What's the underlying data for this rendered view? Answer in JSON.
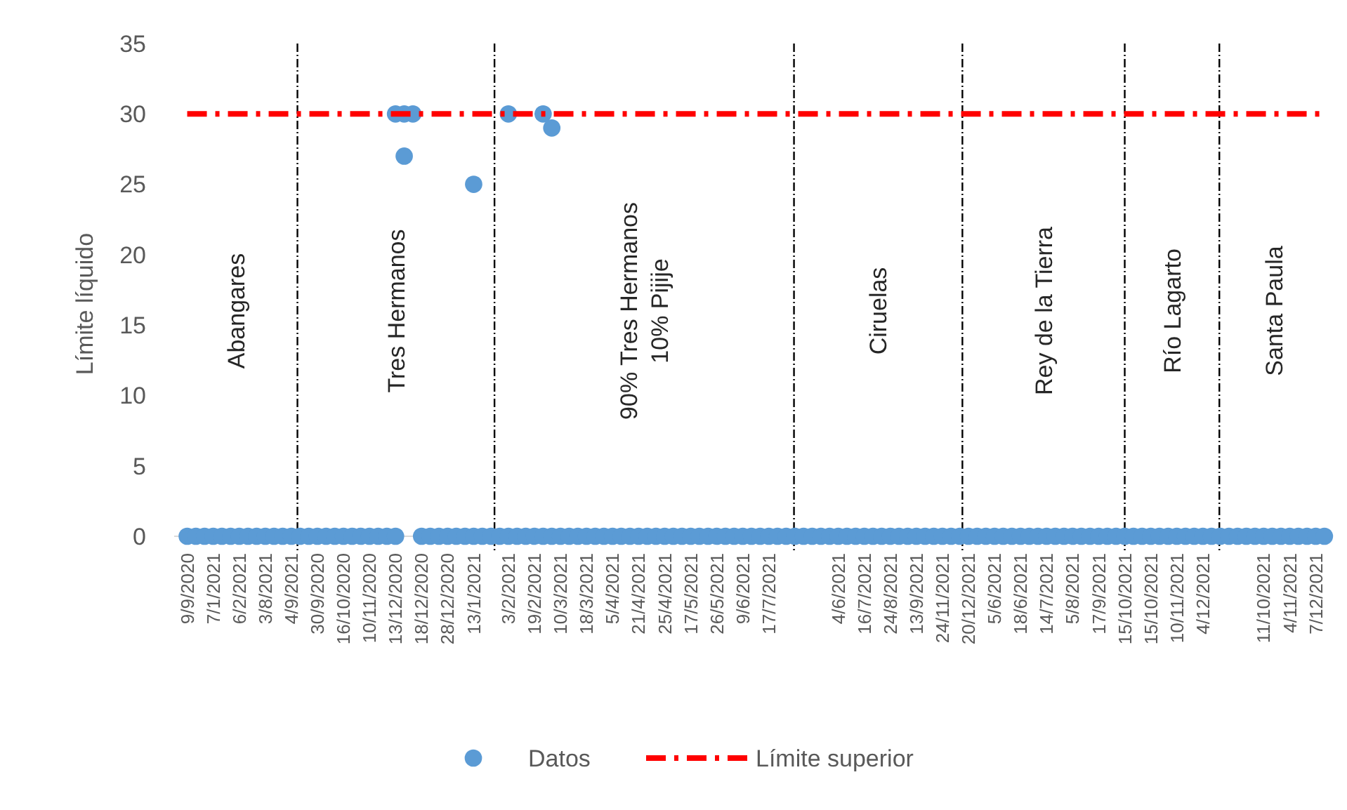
{
  "chart_data": {
    "type": "scatter",
    "ylabel": "Límite líquido",
    "categories": [
      null,
      "9/9/2020",
      null,
      null,
      "7/1/2021",
      null,
      null,
      "6/2/2021",
      null,
      null,
      "3/8/2021",
      null,
      null,
      "4/9/2021",
      null,
      null,
      "30/9/2020",
      null,
      null,
      "16/10/2020",
      null,
      null,
      "10/11/2020",
      null,
      null,
      "13/12/2020",
      null,
      null,
      "18/12/2020",
      null,
      null,
      "28/12/2020",
      null,
      null,
      "13/1/2021",
      null,
      null,
      null,
      "3/2/2021",
      null,
      null,
      "19/2/2021",
      null,
      null,
      "10/3/2021",
      null,
      null,
      "18/3/2021",
      null,
      null,
      "5/4/2021",
      null,
      null,
      "21/4/2021",
      null,
      null,
      "25/4/2021",
      null,
      null,
      "17/5/2021",
      null,
      null,
      "26/5/2021",
      null,
      null,
      "9/6/2021",
      null,
      null,
      "17/7/2021",
      null,
      null,
      null,
      null,
      null,
      null,
      null,
      "4/6/2021",
      null,
      null,
      "16/7/2021",
      null,
      null,
      "24/8/2021",
      null,
      null,
      "13/9/2021",
      null,
      null,
      "24/11/2021",
      null,
      null,
      "20/12/2021",
      null,
      null,
      "5/6/2021",
      null,
      null,
      "18/6/2021",
      null,
      null,
      "14/7/2021",
      null,
      null,
      "5/8/2021",
      null,
      null,
      "17/9/2021",
      null,
      null,
      "15/10/2021",
      null,
      null,
      "15/10/2021",
      null,
      null,
      "10/11/2021",
      null,
      null,
      "4/12/2021",
      null,
      null,
      null,
      null,
      null,
      null,
      "11/10/2021",
      null,
      null,
      "4/11/2021",
      null,
      null,
      "7/12/2021",
      null
    ],
    "ylim": [
      0,
      35
    ],
    "yticks": [
      0,
      5,
      10,
      15,
      20,
      25,
      30,
      35
    ],
    "grid": false,
    "legend": "bottom",
    "series": [
      {
        "name": "Datos",
        "color": "#5b9bd5",
        "marker": "circle",
        "values": [
          null,
          0,
          0,
          0,
          0,
          0,
          0,
          0,
          0,
          0,
          0,
          0,
          0,
          0,
          0,
          0,
          0,
          0,
          0,
          0,
          0,
          0,
          0,
          0,
          0,
          0,
          30,
          30,
          0,
          0,
          0,
          0,
          0,
          0,
          0,
          0,
          0,
          0,
          0,
          0,
          0,
          0,
          0,
          0,
          0,
          0,
          0,
          0,
          0,
          0,
          0,
          0,
          0,
          0,
          0,
          0,
          0,
          0,
          0,
          0,
          0,
          0,
          0,
          0,
          0,
          0,
          0,
          0,
          0,
          0,
          0,
          0,
          0,
          0,
          0,
          0,
          0,
          0,
          0,
          0,
          0,
          0,
          0,
          0,
          0,
          0,
          0,
          0,
          0,
          0,
          0,
          0,
          0,
          0,
          0,
          0,
          0,
          0,
          0,
          0,
          0,
          0,
          0,
          0,
          0,
          0,
          0,
          0,
          0,
          0,
          0,
          0,
          0,
          0,
          0,
          0,
          0,
          0,
          0,
          0,
          0,
          0,
          0,
          0,
          0,
          0,
          0,
          0,
          0,
          0,
          0,
          0,
          0
        ]
      },
      {
        "color": "#5b9bd5",
        "marker": "circle",
        "values": [
          null,
          null,
          null,
          null,
          null,
          null,
          null,
          null,
          null,
          null,
          null,
          null,
          null,
          null,
          null,
          null,
          null,
          null,
          null,
          null,
          null,
          null,
          null,
          null,
          null,
          30,
          27,
          null,
          null,
          null,
          null,
          null,
          null,
          null,
          25,
          null,
          null,
          null,
          30,
          null,
          null,
          null,
          30,
          29,
          null,
          null,
          null,
          null,
          null,
          null,
          null,
          null,
          null,
          null,
          null,
          null,
          null,
          null,
          null,
          null,
          null,
          null,
          null,
          null,
          null,
          null,
          null,
          null,
          null,
          null,
          null,
          null,
          null,
          null,
          null,
          null,
          null,
          null,
          null,
          null,
          null,
          null,
          null,
          null,
          null,
          null,
          null,
          null,
          null,
          null,
          null,
          null,
          null,
          null,
          null,
          null,
          null,
          null,
          null,
          null,
          null,
          null,
          null,
          null,
          null,
          null,
          null,
          null,
          null,
          null,
          null,
          null,
          null,
          null,
          null,
          null,
          null,
          null,
          null,
          null,
          null,
          null,
          null,
          null,
          null,
          null,
          null,
          null,
          null,
          null,
          null,
          null,
          null
        ]
      },
      {
        "name": "Límite superior",
        "type": "line",
        "color": "#ff0000",
        "line_style": "dashed",
        "marker": "none",
        "values": [
          null,
          30,
          30,
          30,
          30,
          30,
          30,
          30,
          30,
          30,
          30,
          30,
          30,
          30,
          30,
          30,
          30,
          30,
          30,
          30,
          30,
          30,
          30,
          30,
          30,
          30,
          30,
          30,
          30,
          30,
          30,
          30,
          30,
          30,
          30,
          30,
          30,
          30,
          30,
          30,
          30,
          30,
          30,
          30,
          30,
          30,
          30,
          30,
          30,
          30,
          30,
          30,
          30,
          30,
          30,
          30,
          30,
          30,
          30,
          30,
          30,
          30,
          30,
          30,
          30,
          30,
          30,
          30,
          30,
          30,
          30,
          30,
          30,
          30,
          30,
          30,
          30,
          30,
          30,
          30,
          30,
          30,
          30,
          30,
          30,
          30,
          30,
          30,
          30,
          30,
          30,
          30,
          30,
          30,
          30,
          30,
          30,
          30,
          30,
          30,
          30,
          30,
          30,
          30,
          30,
          30,
          30,
          30,
          30,
          30,
          30,
          30,
          30,
          30,
          30,
          30,
          30,
          30,
          30,
          30,
          30,
          30,
          30,
          30,
          30,
          30,
          30,
          30,
          30,
          30,
          30,
          30,
          30
        ]
      }
    ],
    "annotations": [
      "Abangares",
      "Tres Hermanos",
      "90% Tres Hermanos\n10% Pijije",
      "Ciruelas",
      "Rey de la Tierra",
      "Río Lagarto",
      "Santa Paula"
    ]
  }
}
